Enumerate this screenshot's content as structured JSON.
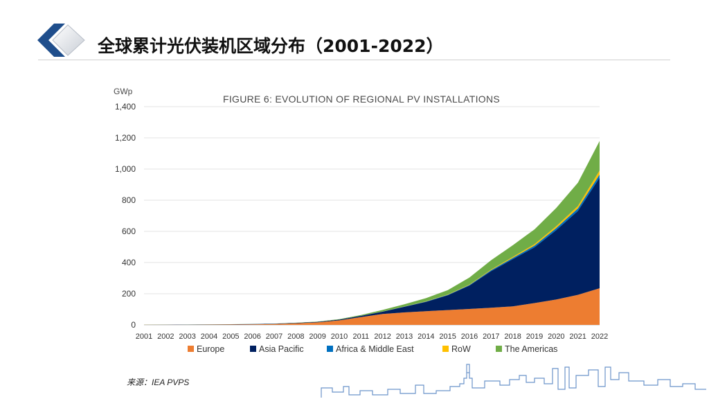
{
  "header": {
    "title": "全球累计光伏装机区域分布（2001-2022）"
  },
  "source_note": "来源：IEA PVPS",
  "colors": {
    "europe": "#ed7d31",
    "asia_pacific": "#002060",
    "africa_middle_east": "#0070c0",
    "row": "#ffc000",
    "americas": "#70ad47"
  },
  "chart_data": {
    "type": "area",
    "stacked": true,
    "title": "FIGURE 6: EVOLUTION OF REGIONAL PV INSTALLATIONS",
    "ylabel": "GWp",
    "xlabel": "",
    "ylim": [
      0,
      1400
    ],
    "yticks": [
      0,
      200,
      400,
      600,
      800,
      1000,
      1200,
      1400
    ],
    "ytick_labels": [
      "0",
      "200",
      "400",
      "600",
      "800",
      "1,000",
      "1,200",
      "1,400"
    ],
    "categories": [
      "2001",
      "2002",
      "2003",
      "2004",
      "2005",
      "2006",
      "2007",
      "2008",
      "2009",
      "2010",
      "2011",
      "2012",
      "2013",
      "2014",
      "2015",
      "2016",
      "2017",
      "2018",
      "2019",
      "2020",
      "2021",
      "2022"
    ],
    "grid": true,
    "legend_position": "bottom",
    "series": [
      {
        "name": "Europe",
        "color": "#ed7d31",
        "values": [
          0.3,
          0.5,
          0.8,
          1.5,
          2.5,
          3.5,
          5.5,
          10,
          16,
          29,
          50,
          70,
          80,
          88,
          95,
          102,
          110,
          119,
          140,
          163,
          193,
          235
        ]
      },
      {
        "name": "Asia Pacific",
        "color": "#002060",
        "values": [
          0.5,
          0.8,
          1,
          1.2,
          1.6,
          2,
          2.2,
          2.8,
          3.5,
          5,
          8,
          15,
          36,
          60,
          95,
          150,
          235,
          303,
          358,
          445,
          538,
          710
        ]
      },
      {
        "name": "Africa & Middle East",
        "color": "#0070c0",
        "values": [
          0,
          0,
          0,
          0,
          0,
          0,
          0,
          0,
          0,
          0,
          0.3,
          0.5,
          1,
          2,
          3,
          4,
          6,
          8,
          11,
          13,
          16,
          20
        ]
      },
      {
        "name": "RoW",
        "color": "#ffc000",
        "values": [
          0,
          0,
          0,
          0,
          0,
          0,
          0,
          0,
          0,
          0,
          0.2,
          0.5,
          1,
          1.5,
          2,
          3,
          4,
          6,
          9,
          12,
          15,
          25
        ]
      },
      {
        "name": "The Americas",
        "color": "#70ad47",
        "values": [
          0.1,
          0.2,
          0.3,
          0.4,
          0.5,
          0.6,
          0.8,
          1,
          1.5,
          2.5,
          5,
          10,
          14,
          20,
          28,
          45,
          60,
          75,
          95,
          117,
          150,
          190
        ]
      }
    ]
  }
}
